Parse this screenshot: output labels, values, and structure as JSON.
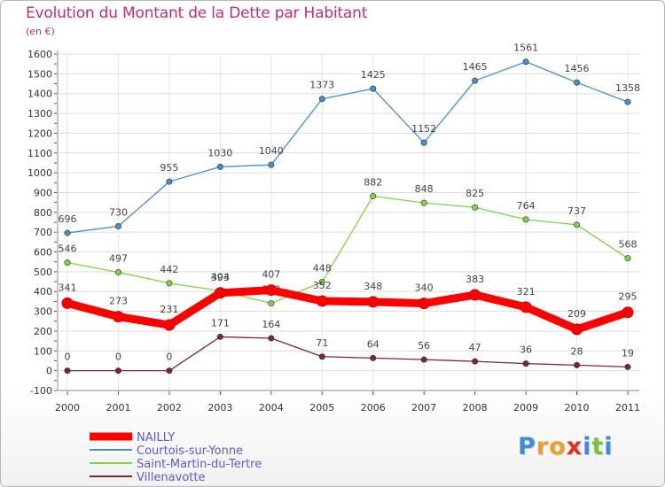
{
  "chart_data": {
    "type": "line",
    "title": "Evolution du Montant de la Dette par Habitant",
    "unit_label": "(en €)",
    "xlabel": "",
    "ylabel": "",
    "ylim": [
      -100,
      1600
    ],
    "yticks": [
      -100,
      0,
      100,
      200,
      300,
      400,
      500,
      600,
      700,
      800,
      900,
      1000,
      1100,
      1200,
      1300,
      1400,
      1500,
      1600
    ],
    "categories": [
      "2000",
      "2001",
      "2002",
      "2003",
      "2004",
      "2005",
      "2006",
      "2007",
      "2008",
      "2009",
      "2010",
      "2011"
    ],
    "series": [
      {
        "name": "Courtois-sur-Yonne",
        "color": "#4a8fc8",
        "values": [
          696,
          730,
          955,
          1030,
          1040,
          1373,
          1425,
          1152,
          1465,
          1561,
          1456,
          1358
        ]
      },
      {
        "name": "Saint-Martin-du-Tertre",
        "color": "#7fd34a",
        "values": [
          546,
          497,
          442,
          404,
          340,
          448,
          882,
          848,
          825,
          764,
          737,
          568
        ]
      },
      {
        "name": "Villenavotte",
        "color": "#7a2a2a",
        "values": [
          0,
          0,
          0,
          171,
          164,
          71,
          64,
          56,
          47,
          36,
          28,
          19
        ]
      },
      {
        "name": "NAILLY",
        "color": "#ff0000",
        "values": [
          341,
          273,
          231,
          393,
          407,
          352,
          348,
          340,
          383,
          321,
          209,
          295
        ]
      }
    ],
    "legend": [
      "NAILLY",
      "Courtois-sur-Yonne",
      "Saint-Martin-du-Tertre",
      "Villenavotte"
    ],
    "legend_position": "bottom-left"
  },
  "brand": {
    "letters": [
      "P",
      "r",
      "o",
      "x",
      "i",
      "t",
      "i"
    ],
    "colors": [
      "#3a8fd6",
      "#f0a020",
      "#f0a020",
      "#e03020",
      "#3a8fd6",
      "#7cc23a",
      "#3a8fd6"
    ]
  }
}
